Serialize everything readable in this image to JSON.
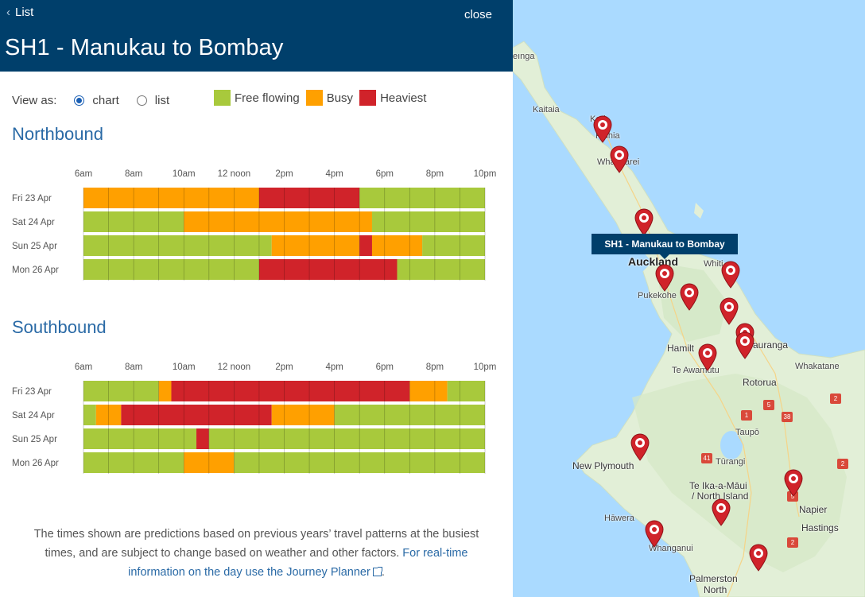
{
  "header": {
    "back_label": "List",
    "close_label": "close",
    "title": "SH1 - Manukau to Bombay"
  },
  "view_as": {
    "label": "View as:",
    "options": [
      {
        "label": "chart",
        "selected": true
      },
      {
        "label": "list",
        "selected": false
      }
    ]
  },
  "legend": [
    {
      "label": "Free flowing",
      "color": "#a8c93c"
    },
    {
      "label": "Busy",
      "color": "#ffa000"
    },
    {
      "label": "Heaviest",
      "color": "#d0232a"
    }
  ],
  "chart_data": [
    {
      "type": "timeline",
      "title": "Northbound",
      "x_ticks": [
        "6am",
        "8am",
        "10am",
        "12 noon",
        "2pm",
        "4pm",
        "6pm",
        "8pm",
        "10pm"
      ],
      "x_range_hours": [
        6,
        22
      ],
      "days": [
        {
          "day": "Fri 23 Apr",
          "segments": [
            {
              "start": 6,
              "end": 13,
              "level": "busy"
            },
            {
              "start": 13,
              "end": 17,
              "level": "heaviest"
            },
            {
              "start": 17,
              "end": 22,
              "level": "free"
            }
          ]
        },
        {
          "day": "Sat 24 Apr",
          "segments": [
            {
              "start": 6,
              "end": 10,
              "level": "free"
            },
            {
              "start": 10,
              "end": 17.5,
              "level": "busy"
            },
            {
              "start": 17.5,
              "end": 22,
              "level": "free"
            }
          ]
        },
        {
          "day": "Sun 25 Apr",
          "segments": [
            {
              "start": 6,
              "end": 13.5,
              "level": "free"
            },
            {
              "start": 13.5,
              "end": 17,
              "level": "busy"
            },
            {
              "start": 17,
              "end": 17.5,
              "level": "heaviest"
            },
            {
              "start": 17.5,
              "end": 19.5,
              "level": "busy"
            },
            {
              "start": 19.5,
              "end": 22,
              "level": "free"
            }
          ]
        },
        {
          "day": "Mon 26 Apr",
          "segments": [
            {
              "start": 6,
              "end": 13,
              "level": "free"
            },
            {
              "start": 13,
              "end": 18.5,
              "level": "heaviest"
            },
            {
              "start": 18.5,
              "end": 22,
              "level": "free"
            }
          ]
        }
      ]
    },
    {
      "type": "timeline",
      "title": "Southbound",
      "x_ticks": [
        "6am",
        "8am",
        "10am",
        "12 noon",
        "2pm",
        "4pm",
        "6pm",
        "8pm",
        "10pm"
      ],
      "x_range_hours": [
        6,
        22
      ],
      "days": [
        {
          "day": "Fri 23 Apr",
          "segments": [
            {
              "start": 6,
              "end": 9,
              "level": "free"
            },
            {
              "start": 9,
              "end": 9.5,
              "level": "busy"
            },
            {
              "start": 9.5,
              "end": 19,
              "level": "heaviest"
            },
            {
              "start": 19,
              "end": 20.5,
              "level": "busy"
            },
            {
              "start": 20.5,
              "end": 22,
              "level": "free"
            }
          ]
        },
        {
          "day": "Sat 24 Apr",
          "segments": [
            {
              "start": 6,
              "end": 6.5,
              "level": "free"
            },
            {
              "start": 6.5,
              "end": 7.5,
              "level": "busy"
            },
            {
              "start": 7.5,
              "end": 13.5,
              "level": "heaviest"
            },
            {
              "start": 13.5,
              "end": 16,
              "level": "busy"
            },
            {
              "start": 16,
              "end": 22,
              "level": "free"
            }
          ]
        },
        {
          "day": "Sun 25 Apr",
          "segments": [
            {
              "start": 6,
              "end": 10.5,
              "level": "free"
            },
            {
              "start": 10.5,
              "end": 11,
              "level": "heaviest"
            },
            {
              "start": 11,
              "end": 22,
              "level": "free"
            }
          ]
        },
        {
          "day": "Mon 26 Apr",
          "segments": [
            {
              "start": 6,
              "end": 10,
              "level": "free"
            },
            {
              "start": 10,
              "end": 12,
              "level": "busy"
            },
            {
              "start": 12,
              "end": 22,
              "level": "free"
            }
          ]
        }
      ]
    }
  ],
  "footer": {
    "text": "The times shown are predictions based on previous years’ travel patterns at the busiest times, and are subject to change based on weather and other factors.",
    "link_text": "For real-time information on the day use the Journey Planner"
  },
  "map": {
    "tooltip": "SH1 - Manukau to Bombay",
    "labels": {
      "Reinga": "eınga",
      "Kaitaia": "Kaitaia",
      "Kerikeri": "Keri",
      "Paihia": "Paihia",
      "Whangarei": "Whangārei",
      "Auckland": "Auckland",
      "Whitianga": "Whiti",
      "Pukekohe": "Pukekohe",
      "Hamilton": "Hamilt",
      "Tauranga": "Tauranga",
      "TeAwamutu": "Te Awamutu",
      "Whakatane": "Whakatane",
      "Rotorua": "Rotorua",
      "Taupo": "Taupō",
      "Turangi": "Tūrangi",
      "NewPlymouth": "New Plymouth",
      "TeIkaAMaui": "Te Ika-a-Māui",
      "NorthIsland": "/ North Island",
      "Hawera": "Hāwera",
      "Napier": "Napier",
      "Hastings": "Hastings",
      "Whanganui": "Whanganui",
      "Palmerston": "Palmerston",
      "PalmerstonNorth": "North"
    },
    "roads": [
      "2",
      "5",
      "38",
      "1",
      "41",
      "2",
      "5",
      "2"
    ]
  },
  "colors": {
    "header_bg": "#003f6b",
    "accent": "#2a6aa6",
    "free": "#a8c93c",
    "busy": "#ffa000",
    "heaviest": "#d0232a",
    "pin": "#d0232a"
  }
}
